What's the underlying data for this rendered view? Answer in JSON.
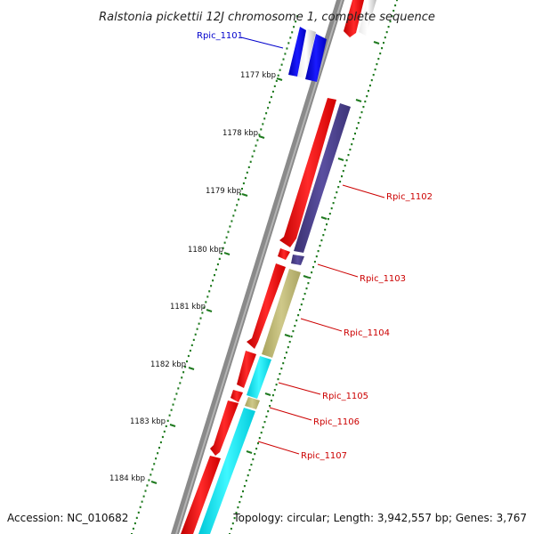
{
  "title": "Ralstonia pickettii 12J chromosome 1, complete sequence",
  "accession": "Accession: NC_010682",
  "topology": "Topology: circular; Length: 3,942,557 bp; Genes: 3,767",
  "colors": {
    "backbone": "#888888",
    "tick": "#1f7a1f",
    "forward_gene": "#ff0000",
    "pseudo_gene": "#cccccc",
    "Rpic_1101": "#0000ff",
    "Rpic_1102": "#4a3f8c",
    "Rpic_1103": "#4a3f8c",
    "Rpic_1104": "#bdb76b",
    "Rpic_1105": "#00e5ee",
    "Rpic_1106": "#bdb76b",
    "Rpic_1107": "#00e5ee"
  },
  "kbp_ticks": [
    "1177 kbp",
    "1178 kbp",
    "1179 kbp",
    "1180 kbp",
    "1181 kbp",
    "1182 kbp",
    "1183 kbp",
    "1184 kbp"
  ],
  "genes": [
    {
      "id": "Rpic_1101",
      "label": "Rpic_1101",
      "label_color": "#0000cc"
    },
    {
      "id": "Rpic_1102",
      "label": "Rpic_1102",
      "label_color": "#cc0000"
    },
    {
      "id": "Rpic_1103",
      "label": "Rpic_1103",
      "label_color": "#cc0000"
    },
    {
      "id": "Rpic_1104",
      "label": "Rpic_1104",
      "label_color": "#cc0000"
    },
    {
      "id": "Rpic_1105",
      "label": "Rpic_1105",
      "label_color": "#cc0000"
    },
    {
      "id": "Rpic_1106",
      "label": "Rpic_1106",
      "label_color": "#cc0000"
    },
    {
      "id": "Rpic_1107",
      "label": "Rpic_1107",
      "label_color": "#cc0000"
    }
  ]
}
